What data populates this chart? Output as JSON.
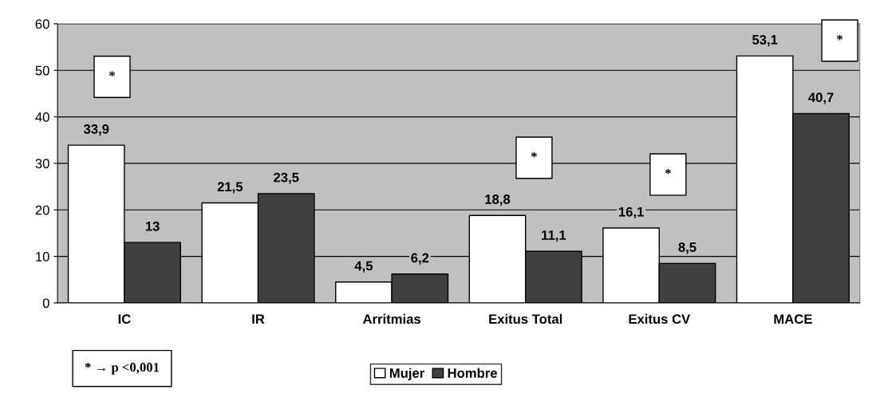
{
  "chart_data": {
    "type": "bar",
    "categories": [
      "IC",
      "IR",
      "Arritmias",
      "Exitus Total",
      "Exitus CV",
      "MACE"
    ],
    "series": [
      {
        "name": "Mujer",
        "color": "#ffffff",
        "values": [
          33.9,
          21.5,
          4.5,
          18.8,
          16.1,
          53.1
        ],
        "value_labels": [
          "33,9",
          "21,5",
          "4,5",
          "18,8",
          "16,1",
          "53,1"
        ]
      },
      {
        "name": "Hombre",
        "color": "#404040",
        "values": [
          13,
          23.5,
          6.2,
          11.1,
          8.5,
          40.7
        ],
        "value_labels": [
          "13",
          "23,5",
          "6,2",
          "11,1",
          "8,5",
          "40,7"
        ]
      }
    ],
    "ylim": [
      0,
      60
    ],
    "yticks": [
      0,
      10,
      20,
      30,
      40,
      50,
      60
    ],
    "grid": "y",
    "legend": "bottom",
    "annotations": [
      "*",
      "*",
      "*",
      "*",
      "* → p <0,001"
    ]
  }
}
